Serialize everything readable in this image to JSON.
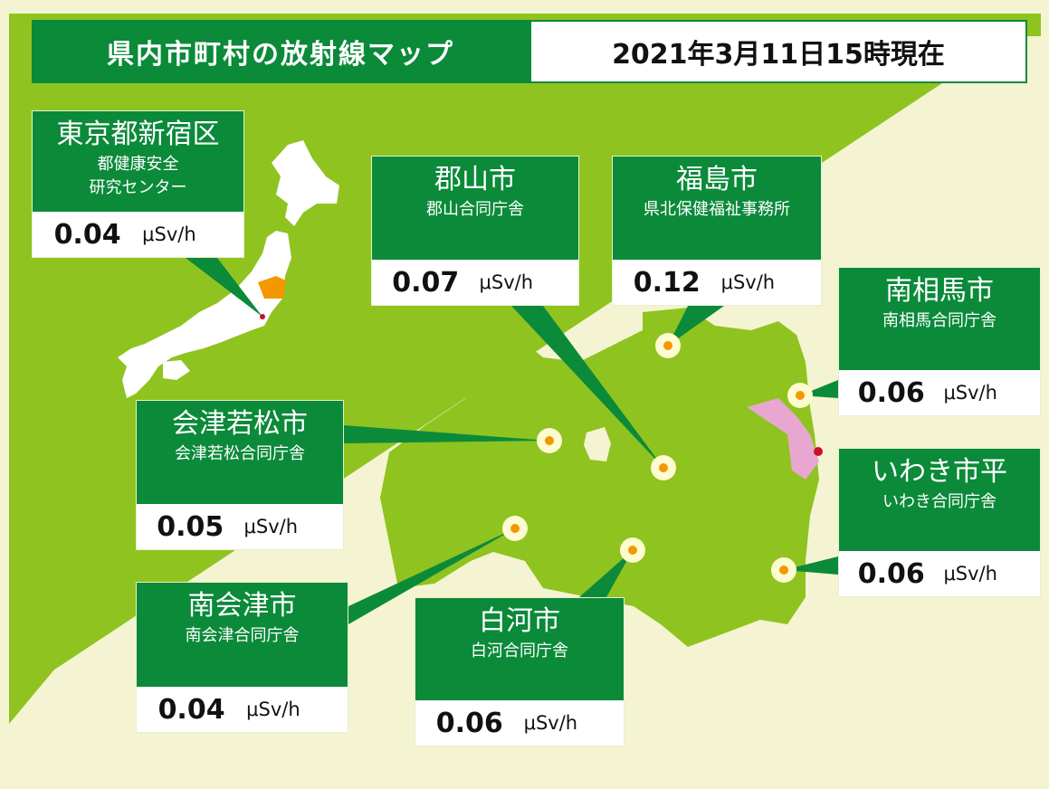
{
  "header": {
    "title": "県内市町村の放射線マップ",
    "datetime": "2021年3月11日15時現在"
  },
  "unit": "μSv/h",
  "stations": [
    {
      "city": "東京都新宿区",
      "facility": [
        "都健康安全",
        "研究センター"
      ],
      "value": 0.04
    },
    {
      "city": "郡山市",
      "facility": [
        "郡山合同庁舎"
      ],
      "value": 0.07
    },
    {
      "city": "福島市",
      "facility": [
        "県北保健福祉事務所"
      ],
      "value": 0.12
    },
    {
      "city": "南相馬市",
      "facility": [
        "南相馬合同庁舎"
      ],
      "value": 0.06
    },
    {
      "city": "会津若松市",
      "facility": [
        "会津若松合同庁舎"
      ],
      "value": 0.05
    },
    {
      "city": "いわき市平",
      "facility": [
        "いわき合同庁舎"
      ],
      "value": 0.06
    },
    {
      "city": "南会津市",
      "facility": [
        "南会津合同庁舎"
      ],
      "value": 0.04
    },
    {
      "city": "白河市",
      "facility": [
        "白河合同庁舎"
      ],
      "value": 0.06
    }
  ]
}
